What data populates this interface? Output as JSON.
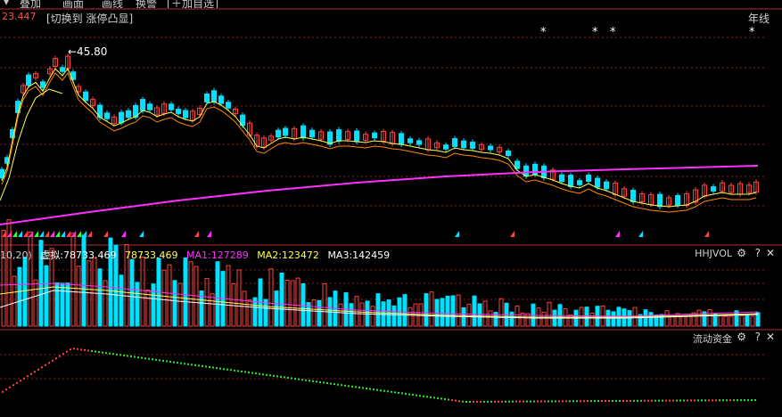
{
  "toolbar": {
    "items": [
      "叠加",
      "画面",
      "画线",
      "换警",
      "加自选"
    ]
  },
  "main_chart": {
    "price_label": "23.447",
    "switch_label": "[切换到 涨停凸显]",
    "ma_label": "年线",
    "high_marker": "←45.80",
    "stars": [
      "*",
      "*",
      "*",
      "*"
    ]
  },
  "volume_panel": {
    "prefix": "10,20)",
    "virtual_label": "虚拟:78733.469",
    "vol_value": "78733.469",
    "ma1": "MA1:127289",
    "ma2": "MA2:123472",
    "ma3": "MA3:142459",
    "indicator_name": "HHJVOL",
    "gear_icon": "gear-icon",
    "help_icon": "question-icon",
    "close_icon": "close-icon"
  },
  "flow_panel": {
    "indicator_name": "流动资金"
  },
  "colors": {
    "up": "#ff4040",
    "down": "#00e0ff",
    "magenta": "#ff30ff",
    "yellow": "#ffff50",
    "background": "#000000",
    "grid": "#8a2020"
  }
}
